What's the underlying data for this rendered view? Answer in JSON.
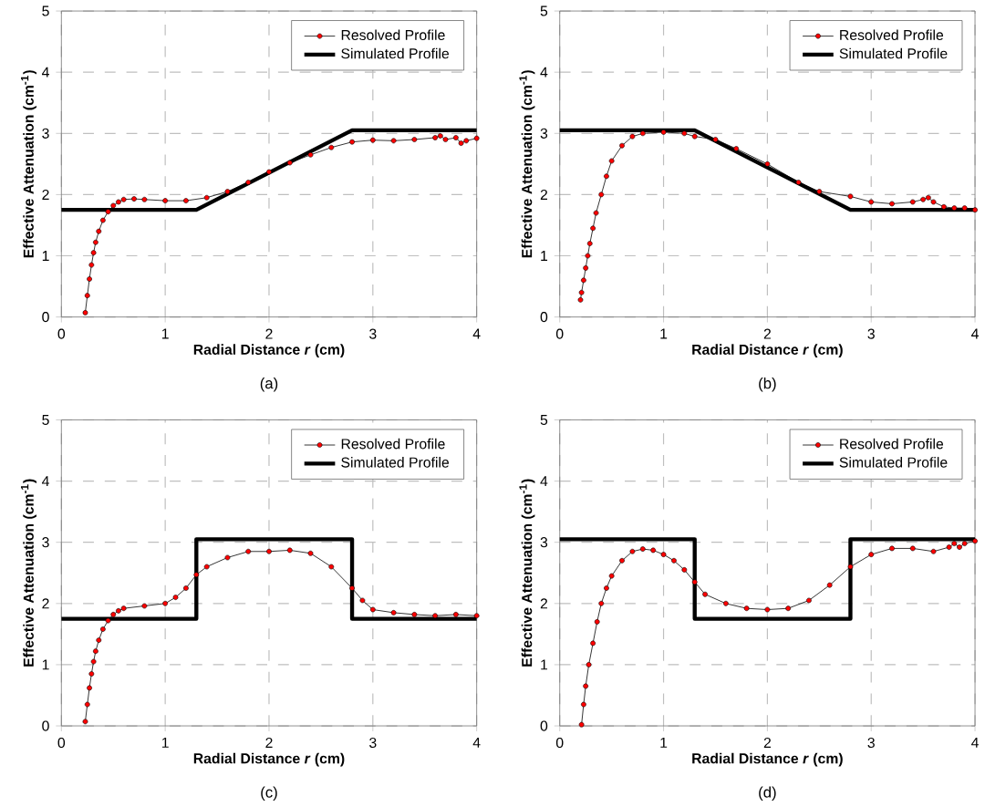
{
  "chart_data": [
    {
      "type": "line",
      "xlabel": "Radial Distance *r* (cm)",
      "ylabel": "Effective Attenuation (cm$^{-1}$)",
      "annotations": [
        "(a)"
      ],
      "xlim": [
        0,
        4
      ],
      "ylim": [
        0,
        5
      ],
      "xticks": [
        0,
        1,
        2,
        3,
        4
      ],
      "yticks": [
        0,
        1,
        2,
        3,
        4,
        5
      ],
      "grid": true,
      "legend": "top right",
      "series": [
        {
          "name": "Resolved Profile",
          "color": "#ff0000",
          "marker": "circle",
          "x": [
            0.23,
            0.25,
            0.27,
            0.29,
            0.31,
            0.33,
            0.36,
            0.4,
            0.45,
            0.5,
            0.55,
            0.6,
            0.7,
            0.8,
            1.0,
            1.2,
            1.4,
            1.6,
            1.8,
            2.0,
            2.2,
            2.4,
            2.6,
            2.8,
            3.0,
            3.2,
            3.4,
            3.6,
            3.65,
            3.7,
            3.8,
            3.85,
            3.9,
            4.0
          ],
          "values": [
            0.07,
            0.35,
            0.62,
            0.85,
            1.05,
            1.22,
            1.4,
            1.58,
            1.72,
            1.82,
            1.88,
            1.92,
            1.93,
            1.92,
            1.9,
            1.9,
            1.95,
            2.05,
            2.2,
            2.37,
            2.52,
            2.65,
            2.77,
            2.86,
            2.89,
            2.88,
            2.9,
            2.93,
            2.96,
            2.9,
            2.93,
            2.84,
            2.88,
            2.92
          ]
        },
        {
          "name": "Simulated Profile",
          "color": "#000000",
          "marker": "none",
          "x": [
            0,
            1.3,
            2.8,
            4
          ],
          "values": [
            1.75,
            1.75,
            3.05,
            3.05
          ]
        }
      ]
    },
    {
      "type": "line",
      "xlabel": "Radial Distance *r* (cm)",
      "ylabel": "Effective Attenuation (cm$^{-1}$)",
      "annotations": [
        "(b)"
      ],
      "xlim": [
        0,
        4
      ],
      "ylim": [
        0,
        5
      ],
      "xticks": [
        0,
        1,
        2,
        3,
        4
      ],
      "yticks": [
        0,
        1,
        2,
        3,
        4,
        5
      ],
      "grid": true,
      "legend": "top right",
      "series": [
        {
          "name": "Resolved Profile",
          "color": "#ff0000",
          "marker": "circle",
          "x": [
            0.2,
            0.21,
            0.23,
            0.25,
            0.27,
            0.29,
            0.32,
            0.35,
            0.4,
            0.45,
            0.5,
            0.6,
            0.7,
            0.8,
            1.0,
            1.2,
            1.3,
            1.5,
            1.7,
            2.0,
            2.3,
            2.5,
            2.8,
            3.0,
            3.2,
            3.4,
            3.5,
            3.55,
            3.6,
            3.7,
            3.8,
            3.9,
            4.0
          ],
          "values": [
            0.28,
            0.4,
            0.6,
            0.8,
            1.0,
            1.2,
            1.45,
            1.7,
            2.0,
            2.3,
            2.55,
            2.8,
            2.95,
            3.0,
            3.02,
            3.0,
            2.95,
            2.9,
            2.75,
            2.5,
            2.2,
            2.05,
            1.97,
            1.88,
            1.85,
            1.88,
            1.92,
            1.95,
            1.88,
            1.8,
            1.78,
            1.78,
            1.75
          ]
        },
        {
          "name": "Simulated Profile",
          "color": "#000000",
          "marker": "none",
          "x": [
            0,
            1.3,
            2.8,
            4
          ],
          "values": [
            3.05,
            3.05,
            1.75,
            1.75
          ]
        }
      ]
    },
    {
      "type": "line",
      "xlabel": "Radial Distance *r* (cm)",
      "ylabel": "Effective Attenuation (cm$^{-1}$)",
      "annotations": [
        "(c)"
      ],
      "xlim": [
        0,
        4
      ],
      "ylim": [
        0,
        5
      ],
      "xticks": [
        0,
        1,
        2,
        3,
        4
      ],
      "yticks": [
        0,
        1,
        2,
        3,
        4,
        5
      ],
      "grid": true,
      "legend": "top right",
      "series": [
        {
          "name": "Resolved Profile",
          "color": "#ff0000",
          "marker": "circle",
          "x": [
            0.23,
            0.25,
            0.27,
            0.29,
            0.31,
            0.33,
            0.36,
            0.4,
            0.45,
            0.5,
            0.55,
            0.6,
            0.8,
            1.0,
            1.1,
            1.2,
            1.3,
            1.4,
            1.6,
            1.8,
            2.0,
            2.2,
            2.4,
            2.6,
            2.8,
            2.9,
            3.0,
            3.2,
            3.4,
            3.6,
            3.8,
            4.0
          ],
          "values": [
            0.07,
            0.35,
            0.62,
            0.85,
            1.05,
            1.22,
            1.4,
            1.58,
            1.72,
            1.82,
            1.88,
            1.92,
            1.96,
            2.0,
            2.1,
            2.25,
            2.47,
            2.6,
            2.75,
            2.85,
            2.85,
            2.87,
            2.82,
            2.6,
            2.25,
            2.05,
            1.9,
            1.85,
            1.82,
            1.8,
            1.82,
            1.8
          ]
        },
        {
          "name": "Simulated Profile",
          "color": "#000000",
          "marker": "none",
          "x": [
            0,
            1.3,
            1.3,
            2.8,
            2.8,
            4
          ],
          "values": [
            1.75,
            1.75,
            3.05,
            3.05,
            1.75,
            1.75
          ]
        }
      ]
    },
    {
      "type": "line",
      "xlabel": "Radial Distance *r* (cm)",
      "ylabel": "Effective Attenuation (cm$^{-1}$)",
      "annotations": [
        "(d)"
      ],
      "xlim": [
        0,
        4
      ],
      "ylim": [
        0,
        5
      ],
      "xticks": [
        0,
        1,
        2,
        3,
        4
      ],
      "yticks": [
        0,
        1,
        2,
        3,
        4,
        5
      ],
      "grid": true,
      "legend": "top right",
      "series": [
        {
          "name": "Resolved Profile",
          "color": "#ff0000",
          "marker": "circle",
          "x": [
            0.21,
            0.23,
            0.25,
            0.28,
            0.32,
            0.36,
            0.4,
            0.45,
            0.5,
            0.6,
            0.7,
            0.8,
            0.9,
            1.0,
            1.1,
            1.2,
            1.3,
            1.4,
            1.6,
            1.8,
            2.0,
            2.2,
            2.4,
            2.6,
            2.8,
            3.0,
            3.2,
            3.4,
            3.6,
            3.75,
            3.8,
            3.85,
            3.9,
            4.0
          ],
          "values": [
            0.02,
            0.35,
            0.65,
            1.0,
            1.35,
            1.7,
            2.0,
            2.25,
            2.45,
            2.7,
            2.85,
            2.89,
            2.87,
            2.8,
            2.7,
            2.55,
            2.35,
            2.15,
            2.0,
            1.92,
            1.9,
            1.92,
            2.05,
            2.3,
            2.6,
            2.8,
            2.9,
            2.9,
            2.85,
            2.92,
            2.98,
            2.92,
            2.98,
            3.02
          ]
        },
        {
          "name": "Simulated Profile",
          "color": "#000000",
          "marker": "none",
          "x": [
            0,
            1.3,
            1.3,
            2.8,
            2.8,
            4
          ],
          "values": [
            3.05,
            3.05,
            1.75,
            1.75,
            3.05,
            3.05
          ]
        }
      ]
    }
  ]
}
